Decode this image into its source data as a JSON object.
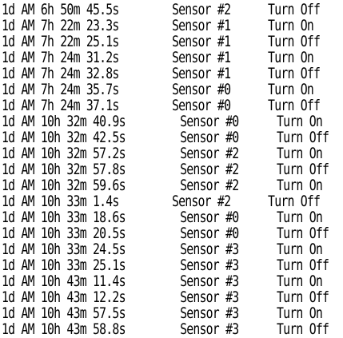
{
  "log": {
    "rows": [
      {
        "time": "1d AM 6h 50m 45.5s",
        "sensor": "Sensor #2",
        "action": "Turn Off",
        "width": "short"
      },
      {
        "time": "1d AM 7h 22m 23.3s",
        "sensor": "Sensor #1",
        "action": "Turn On",
        "width": "short"
      },
      {
        "time": "1d AM 7h 22m 25.1s",
        "sensor": "Sensor #1",
        "action": "Turn Off",
        "width": "short"
      },
      {
        "time": "1d AM 7h 24m 31.2s",
        "sensor": "Sensor #1",
        "action": "Turn On",
        "width": "short"
      },
      {
        "time": "1d AM 7h 24m 32.8s",
        "sensor": "Sensor #1",
        "action": "Turn Off",
        "width": "short"
      },
      {
        "time": "1d AM 7h 24m 35.7s",
        "sensor": "Sensor #0",
        "action": "Turn On",
        "width": "short"
      },
      {
        "time": "1d AM 7h 24m 37.1s",
        "sensor": "Sensor #0",
        "action": "Turn Off",
        "width": "short"
      },
      {
        "time": "1d AM 10h 32m 40.9s",
        "sensor": "Sensor #0",
        "action": "Turn On",
        "width": "long"
      },
      {
        "time": "1d AM 10h 32m 42.5s",
        "sensor": "Sensor #0",
        "action": "Turn Off",
        "width": "long"
      },
      {
        "time": "1d AM 10h 32m 57.2s",
        "sensor": "Sensor #2",
        "action": "Turn On",
        "width": "long"
      },
      {
        "time": "1d AM 10h 32m 57.8s",
        "sensor": "Sensor #2",
        "action": "Turn Off",
        "width": "long"
      },
      {
        "time": "1d AM 10h 32m 59.6s",
        "sensor": "Sensor #2",
        "action": "Turn On",
        "width": "long"
      },
      {
        "time": "1d AM 10h 33m 1.4s",
        "sensor": "Sensor #2",
        "action": "Turn Off",
        "width": "short"
      },
      {
        "time": "1d AM 10h 33m 18.6s",
        "sensor": "Sensor #0",
        "action": "Turn On",
        "width": "long"
      },
      {
        "time": "1d AM 10h 33m 20.5s",
        "sensor": "Sensor #0",
        "action": "Turn Off",
        "width": "long"
      },
      {
        "time": "1d AM 10h 33m 24.5s",
        "sensor": "Sensor #3",
        "action": "Turn On",
        "width": "long"
      },
      {
        "time": "1d AM 10h 33m 25.1s",
        "sensor": "Sensor #3",
        "action": "Turn Off",
        "width": "long"
      },
      {
        "time": "1d AM 10h 43m 11.4s",
        "sensor": "Sensor #3",
        "action": "Turn On",
        "width": "long"
      },
      {
        "time": "1d AM 10h 43m 12.2s",
        "sensor": "Sensor #3",
        "action": "Turn Off",
        "width": "long"
      },
      {
        "time": "1d AM 10h 43m 57.5s",
        "sensor": "Sensor #3",
        "action": "Turn On",
        "width": "long"
      },
      {
        "time": "1d AM 10h 43m 58.8s",
        "sensor": "Sensor #3",
        "action": "Turn Off",
        "width": "long"
      }
    ]
  }
}
